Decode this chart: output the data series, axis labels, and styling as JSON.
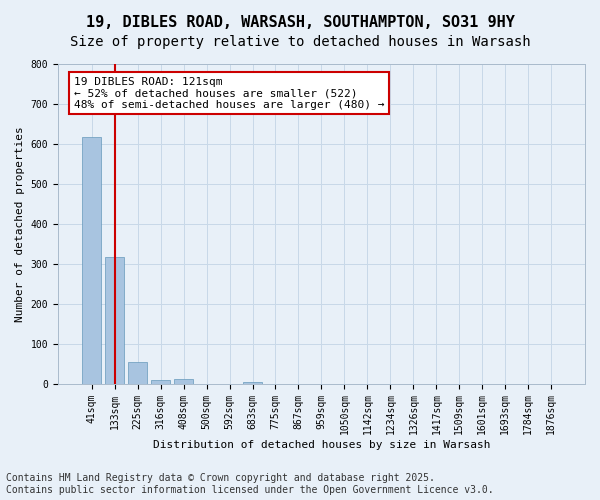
{
  "title": "19, DIBLES ROAD, WARSASH, SOUTHAMPTON, SO31 9HY",
  "subtitle": "Size of property relative to detached houses in Warsash",
  "xlabel": "Distribution of detached houses by size in Warsash",
  "ylabel": "Number of detached properties",
  "bin_labels": [
    "41sqm",
    "133sqm",
    "225sqm",
    "316sqm",
    "408sqm",
    "500sqm",
    "592sqm",
    "683sqm",
    "775sqm",
    "867sqm",
    "959sqm",
    "1050sqm",
    "1142sqm",
    "1234sqm",
    "1326sqm",
    "1417sqm",
    "1509sqm",
    "1601sqm",
    "1693sqm",
    "1784sqm",
    "1876sqm"
  ],
  "bar_values": [
    617,
    317,
    54,
    10,
    12,
    0,
    0,
    5,
    0,
    0,
    0,
    0,
    0,
    0,
    0,
    0,
    0,
    0,
    0,
    0,
    0
  ],
  "bar_color": "#a8c4e0",
  "bar_edge_color": "#6699bb",
  "property_line_x": 1,
  "annotation_text": "19 DIBLES ROAD: 121sqm\n← 52% of detached houses are smaller (522)\n48% of semi-detached houses are larger (480) →",
  "annotation_box_color": "#ffffff",
  "annotation_border_color": "#cc0000",
  "vline_color": "#cc0000",
  "ylim": [
    0,
    800
  ],
  "yticks": [
    0,
    100,
    200,
    300,
    400,
    500,
    600,
    700,
    800
  ],
  "grid_color": "#c8d8e8",
  "background_color": "#e8f0f8",
  "footer_line1": "Contains HM Land Registry data © Crown copyright and database right 2025.",
  "footer_line2": "Contains public sector information licensed under the Open Government Licence v3.0.",
  "title_fontsize": 11,
  "subtitle_fontsize": 10,
  "axis_label_fontsize": 8,
  "tick_fontsize": 7,
  "annotation_fontsize": 8,
  "footer_fontsize": 7
}
